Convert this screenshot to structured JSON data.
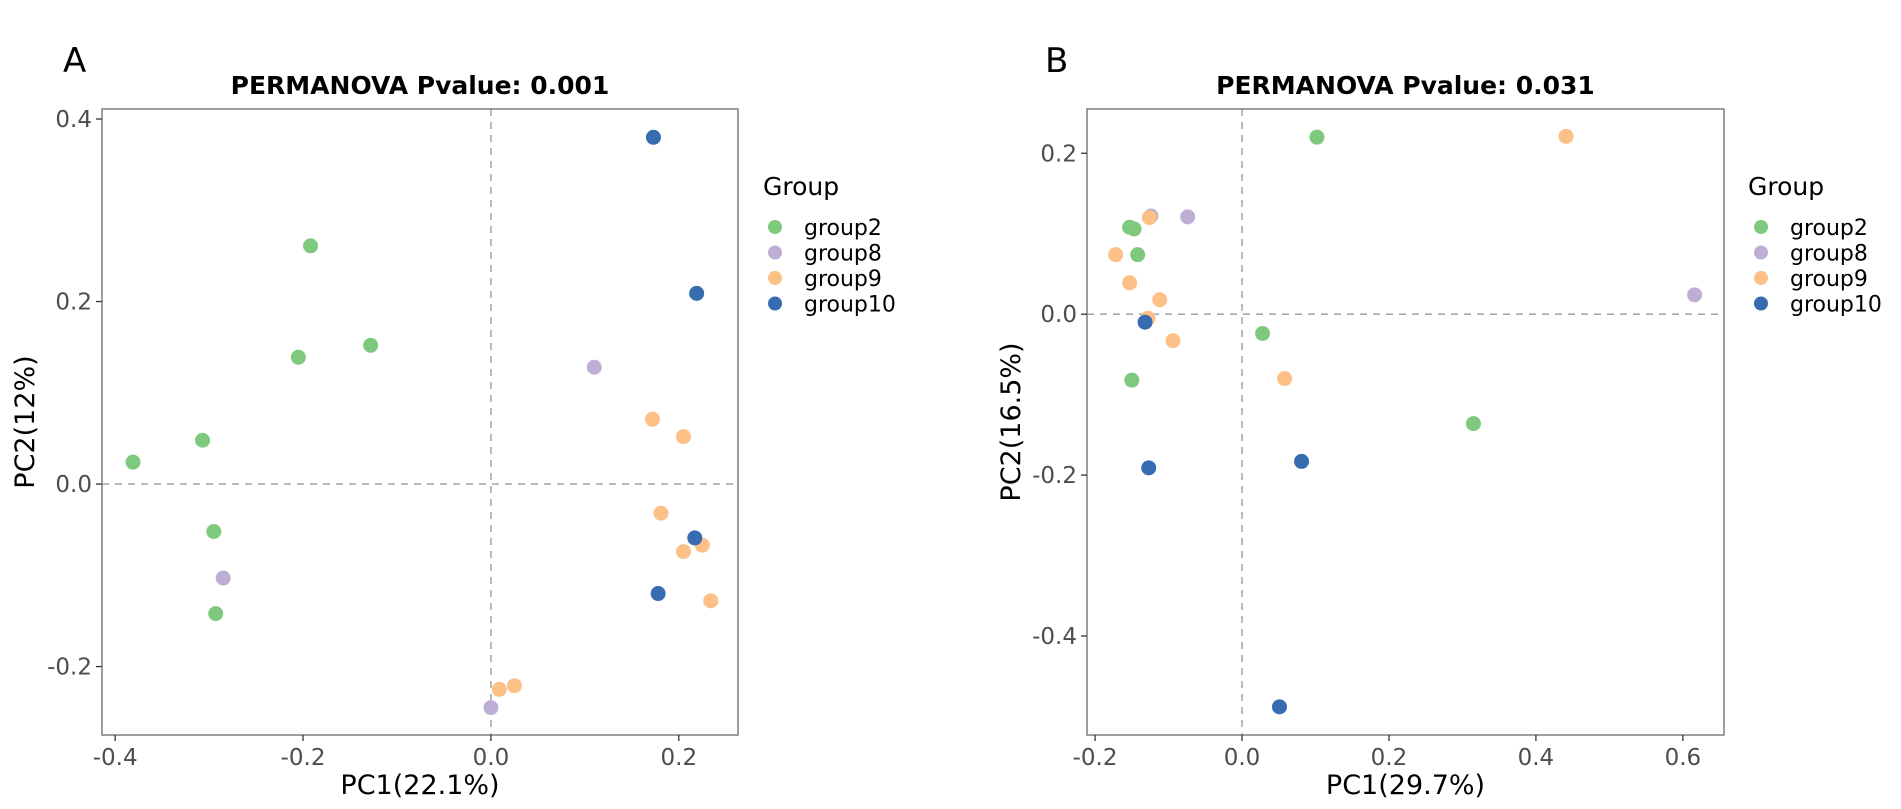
{
  "palette": {
    "group2": "#7FC97F",
    "group8": "#BEAED4",
    "group9": "#FDC086",
    "group10": "#386CB0"
  },
  "chart_data": [
    {
      "type": "scatter",
      "panel": "A",
      "title": "PERMANOVA Pvalue: 0.001",
      "xlabel": "PC1(22.1%)",
      "ylabel": "PC2(12%)",
      "xlim": [
        -0.414,
        0.263
      ],
      "ylim": [
        -0.275,
        0.411
      ],
      "xticks": [
        -0.4,
        -0.2,
        0.0,
        0.2
      ],
      "xtick_labels": [
        "-0.4",
        "-0.2",
        "0.0",
        "0.2"
      ],
      "yticks": [
        -0.2,
        0.0,
        0.2,
        0.4
      ],
      "ytick_labels": [
        "-0.2",
        "0.0",
        "0.2",
        "0.4"
      ],
      "reference_lines": {
        "x": 0,
        "y": 0,
        "style": "dashed"
      },
      "legend": {
        "title": "Group",
        "entries": [
          "group2",
          "group8",
          "group9",
          "group10"
        ],
        "position": "right"
      },
      "series": [
        {
          "name": "group2",
          "points": [
            [
              -0.381,
              0.024
            ],
            [
              -0.307,
              0.048
            ],
            [
              -0.192,
              0.261
            ],
            [
              -0.205,
              0.139
            ],
            [
              -0.128,
              0.152
            ],
            [
              -0.295,
              -0.052
            ],
            [
              -0.293,
              -0.142
            ]
          ]
        },
        {
          "name": "group8",
          "points": [
            [
              -0.285,
              -0.103
            ],
            [
              0.11,
              0.128
            ],
            [
              0.0,
              -0.245
            ]
          ]
        },
        {
          "name": "group9",
          "points": [
            [
              0.172,
              0.071
            ],
            [
              0.205,
              0.052
            ],
            [
              0.181,
              -0.032
            ],
            [
              0.205,
              -0.074
            ],
            [
              0.225,
              -0.067
            ],
            [
              0.234,
              -0.128
            ],
            [
              0.009,
              -0.225
            ],
            [
              0.025,
              -0.221
            ]
          ]
        },
        {
          "name": "group10",
          "points": [
            [
              0.173,
              0.38
            ],
            [
              0.219,
              0.209
            ],
            [
              0.217,
              -0.059
            ],
            [
              0.178,
              -0.12
            ]
          ]
        }
      ]
    },
    {
      "type": "scatter",
      "panel": "B",
      "title": "PERMANOVA Pvalue: 0.031",
      "xlabel": "PC1(29.7%)",
      "ylabel": "PC2(16.5%)",
      "xlim": [
        -0.211,
        0.656
      ],
      "ylim": [
        -0.523,
        0.255
      ],
      "xticks": [
        -0.2,
        0.0,
        0.2,
        0.4,
        0.6
      ],
      "xtick_labels": [
        "-0.2",
        "0.0",
        "0.2",
        "0.4",
        "0.6"
      ],
      "yticks": [
        -0.4,
        -0.2,
        0.0,
        0.2
      ],
      "ytick_labels": [
        "-0.4",
        "-0.2",
        "0.0",
        "0.2"
      ],
      "reference_lines": {
        "x": 0,
        "y": 0,
        "style": "dashed"
      },
      "legend": {
        "title": "Group",
        "entries": [
          "group2",
          "group8",
          "group9",
          "group10"
        ],
        "position": "right"
      },
      "series": [
        {
          "name": "group2",
          "points": [
            [
              0.102,
              0.22
            ],
            [
              -0.142,
              0.074
            ],
            [
              -0.153,
              0.108
            ],
            [
              -0.147,
              0.106
            ],
            [
              -0.15,
              -0.082
            ],
            [
              0.028,
              -0.024
            ],
            [
              0.315,
              -0.136
            ]
          ]
        },
        {
          "name": "group8",
          "points": [
            [
              -0.124,
              0.122
            ],
            [
              -0.074,
              0.121
            ],
            [
              0.616,
              0.024
            ]
          ]
        },
        {
          "name": "group9",
          "points": [
            [
              0.441,
              0.221
            ],
            [
              -0.172,
              0.074
            ],
            [
              -0.153,
              0.039
            ],
            [
              -0.112,
              0.018
            ],
            [
              -0.128,
              -0.005
            ],
            [
              -0.094,
              -0.033
            ],
            [
              0.058,
              -0.08
            ],
            [
              -0.126,
              0.12
            ]
          ]
        },
        {
          "name": "group10",
          "points": [
            [
              -0.132,
              -0.01
            ],
            [
              -0.127,
              -0.191
            ],
            [
              0.081,
              -0.183
            ],
            [
              0.051,
              -0.488
            ]
          ]
        }
      ]
    }
  ]
}
